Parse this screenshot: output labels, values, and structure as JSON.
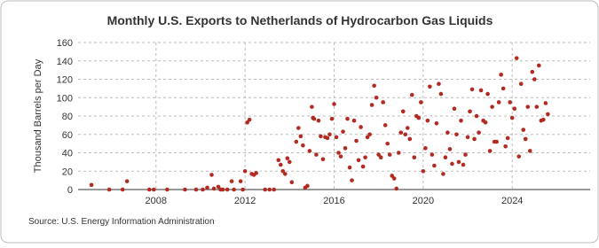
{
  "chart_data": {
    "type": "scatter",
    "title": "Monthly U.S. Exports to Netherlands of Hydrocarbon Gas Liquids",
    "y_label": "Thousand Barrels per Day",
    "source": "Source: U.S. Energy Information Administration",
    "xlim": [
      2004.5,
      2027.5
    ],
    "xticks": [
      2008,
      2012,
      2016,
      2020,
      2024
    ],
    "ylim": [
      0,
      160
    ],
    "yticks": [
      0,
      20,
      40,
      60,
      80,
      100,
      120,
      140,
      160
    ],
    "grid": true,
    "color": "#b32a22",
    "x": [
      2005.1,
      2005.9,
      2006.5,
      2006.7,
      2007.7,
      2007.9,
      2008.5,
      2009.3,
      2009.8,
      2010.1,
      2010.3,
      2010.5,
      2010.6,
      2010.8,
      2010.9,
      2011.0,
      2011.2,
      2011.4,
      2011.5,
      2011.8,
      2011.9,
      2012.0,
      2012.1,
      2012.2,
      2012.3,
      2012.4,
      2012.5,
      2012.9,
      2013.1,
      2013.3,
      2013.5,
      2013.6,
      2013.7,
      2013.8,
      2013.9,
      2014.0,
      2014.1,
      2014.3,
      2014.4,
      2014.5,
      2014.6,
      2014.7,
      2014.8,
      2014.9,
      2015.0,
      2015.05,
      2015.1,
      2015.2,
      2015.3,
      2015.4,
      2015.5,
      2015.6,
      2015.7,
      2015.8,
      2015.9,
      2016.0,
      2016.1,
      2016.2,
      2016.3,
      2016.4,
      2016.5,
      2016.6,
      2016.7,
      2016.8,
      2016.9,
      2017.0,
      2017.1,
      2017.2,
      2017.3,
      2017.4,
      2017.5,
      2017.6,
      2017.7,
      2017.8,
      2017.9,
      2018.0,
      2018.1,
      2018.2,
      2018.3,
      2018.4,
      2018.5,
      2018.6,
      2018.7,
      2018.8,
      2018.9,
      2019.0,
      2019.1,
      2019.2,
      2019.3,
      2019.4,
      2019.5,
      2019.6,
      2019.7,
      2019.8,
      2019.9,
      2020.0,
      2020.1,
      2020.2,
      2020.3,
      2020.4,
      2020.5,
      2020.6,
      2020.7,
      2020.8,
      2020.9,
      2021.0,
      2021.1,
      2021.2,
      2021.3,
      2021.4,
      2021.5,
      2021.6,
      2021.7,
      2021.8,
      2021.9,
      2022.0,
      2022.1,
      2022.2,
      2022.3,
      2022.4,
      2022.5,
      2022.6,
      2022.7,
      2022.8,
      2022.9,
      2023.0,
      2023.1,
      2023.2,
      2023.3,
      2023.4,
      2023.5,
      2023.6,
      2023.7,
      2023.8,
      2023.9,
      2024.0,
      2024.1,
      2024.2,
      2024.3,
      2024.4,
      2024.5,
      2024.6,
      2024.7,
      2024.8,
      2024.9,
      2025.0,
      2025.1,
      2025.2,
      2025.3,
      2025.4,
      2025.5,
      2025.6
    ],
    "values": [
      5,
      0,
      0,
      9,
      0,
      0,
      0,
      0,
      0,
      0,
      2,
      16,
      1,
      3,
      0,
      0,
      0,
      9,
      0,
      9,
      0,
      20,
      73,
      76,
      17,
      16,
      18,
      0,
      0,
      0,
      32,
      27,
      20,
      17,
      34,
      30,
      8,
      52,
      67,
      58,
      48,
      2,
      4,
      42,
      90,
      78,
      77,
      38,
      75,
      58,
      33,
      57,
      56,
      60,
      77,
      93,
      57,
      40,
      36,
      63,
      45,
      77,
      24,
      10,
      75,
      53,
      32,
      68,
      25,
      35,
      57,
      60,
      92,
      113,
      100,
      38,
      35,
      95,
      70,
      50,
      38,
      15,
      12,
      1,
      40,
      62,
      85,
      60,
      67,
      55,
      103,
      35,
      80,
      78,
      95,
      20,
      45,
      75,
      112,
      38,
      26,
      72,
      115,
      104,
      17,
      35,
      62,
      44,
      28,
      88,
      60,
      30,
      75,
      27,
      38,
      57,
      85,
      109,
      55,
      80,
      62,
      108,
      75,
      73,
      104,
      42,
      90,
      52,
      52,
      95,
      125,
      110,
      47,
      56,
      95,
      78,
      88,
      143,
      36,
      115,
      65,
      55,
      90,
      42,
      128,
      120,
      90,
      135,
      75,
      76,
      94,
      82
    ]
  }
}
